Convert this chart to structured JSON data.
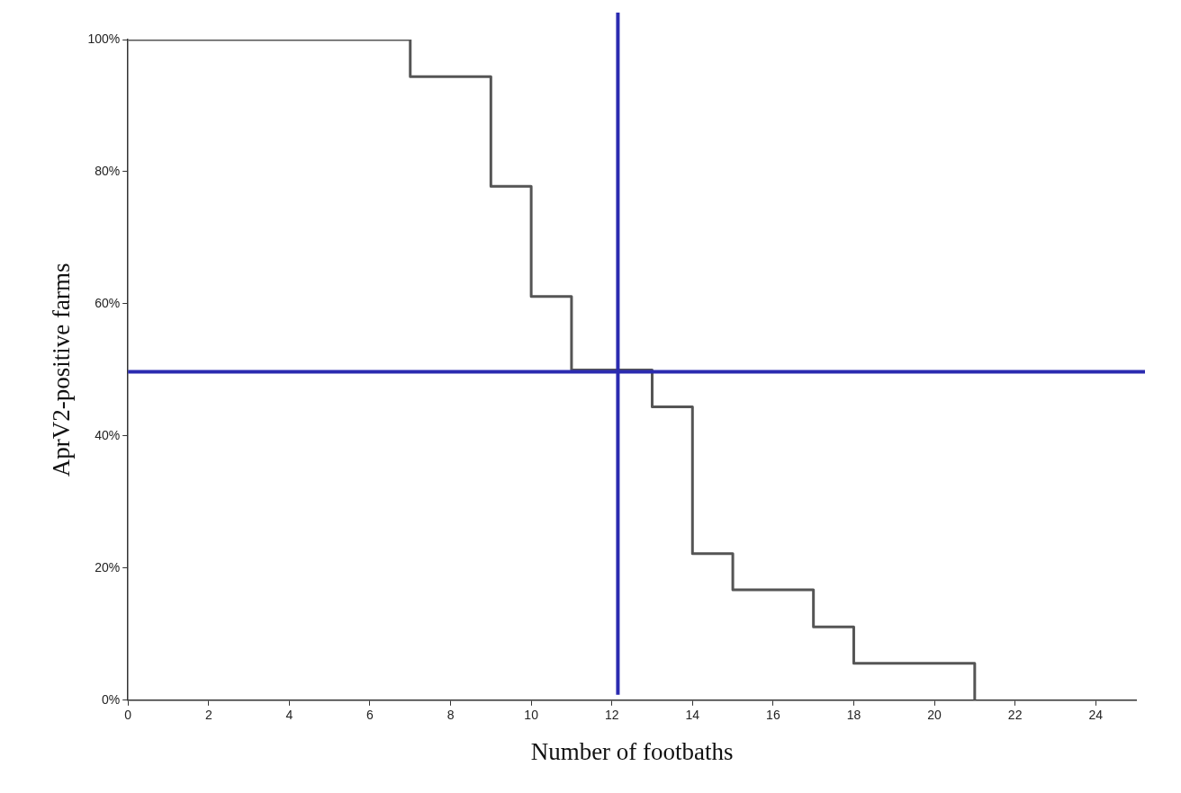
{
  "chart_data": {
    "type": "step",
    "xlabel": "Number of footbaths",
    "ylabel": "AprV2-positive farms",
    "x": [
      0,
      7,
      9,
      10,
      11,
      13,
      14,
      15,
      17,
      18,
      21
    ],
    "series": [
      {
        "color": "#555555",
        "values": [
          100,
          94.4,
          77.8,
          61.1,
          50,
          44.4,
          22.2,
          16.7,
          11.1,
          5.6,
          0
        ]
      }
    ],
    "xlim": [
      0,
      25
    ],
    "xticks": [
      0,
      2,
      4,
      6,
      8,
      10,
      12,
      14,
      16,
      18,
      20,
      22,
      24
    ],
    "ylim": [
      0,
      100
    ],
    "yticks": [
      {
        "value": 0,
        "label": "0%"
      },
      {
        "value": 20,
        "label": "20%"
      },
      {
        "value": 40,
        "label": "40%"
      },
      {
        "value": 60,
        "label": "60%"
      },
      {
        "value": 80,
        "label": "80%"
      },
      {
        "value": 100,
        "label": "100%"
      }
    ],
    "ref_lines": [
      {
        "axis": "x",
        "value": 12.15,
        "color": "#2b2bb0"
      },
      {
        "axis": "y",
        "value": 49.7,
        "color": "#2b2bb0"
      }
    ],
    "grid": false,
    "legend": false,
    "marker": "none",
    "line_style": "solid"
  }
}
